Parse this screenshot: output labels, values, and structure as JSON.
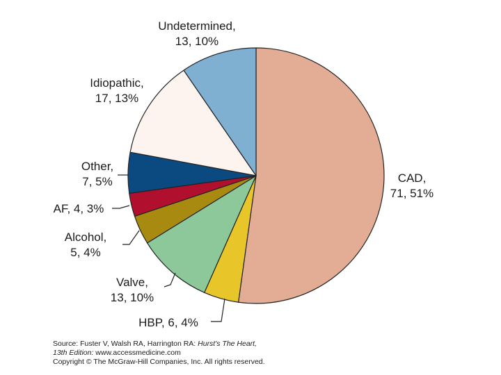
{
  "chart_data": {
    "type": "pie",
    "title": "",
    "start_angle_deg": 0,
    "direction": "clockwise",
    "slices": [
      {
        "name": "CAD",
        "count": 71,
        "percent": "51%",
        "line1": "CAD,",
        "line2": "71, 51%",
        "color": "#e2ad94"
      },
      {
        "name": "HBP",
        "count": 6,
        "percent": "4%",
        "line1": "HBP, 6, 4%",
        "line2": "",
        "color": "#e8c62a"
      },
      {
        "name": "Valve",
        "count": 13,
        "percent": "10%",
        "line1": "Valve,",
        "line2": "13, 10%",
        "color": "#8cc89a"
      },
      {
        "name": "Alcohol",
        "count": 5,
        "percent": "4%",
        "line1": "Alcohol,",
        "line2": "5, 4%",
        "color": "#a88a10"
      },
      {
        "name": "AF",
        "count": 4,
        "percent": "3%",
        "line1": "AF, 4, 3%",
        "line2": "",
        "color": "#b0102e"
      },
      {
        "name": "Other",
        "count": 7,
        "percent": "5%",
        "line1": "Other,",
        "line2": "7, 5%",
        "color": "#0a4a80"
      },
      {
        "name": "Idiopathic",
        "count": 17,
        "percent": "13%",
        "line1": "Idiopathic,",
        "line2": "17, 13%",
        "color": "#fdf4ef"
      },
      {
        "name": "Undetermined",
        "count": 13,
        "percent": "10%",
        "line1": "Undetermined,",
        "line2": "13, 10%",
        "color": "#7fb0d2"
      }
    ]
  },
  "source": {
    "line1_prefix": "Source: Fuster V, Walsh RA, Harrington RA: ",
    "line1_title": "Hurst's The Heart,",
    "line2_edition": "13th Edition:",
    "line2_url": " www.accessmedicine.com",
    "line3": "Copyright © The McGraw-Hill Companies, Inc. All rights reserved."
  }
}
